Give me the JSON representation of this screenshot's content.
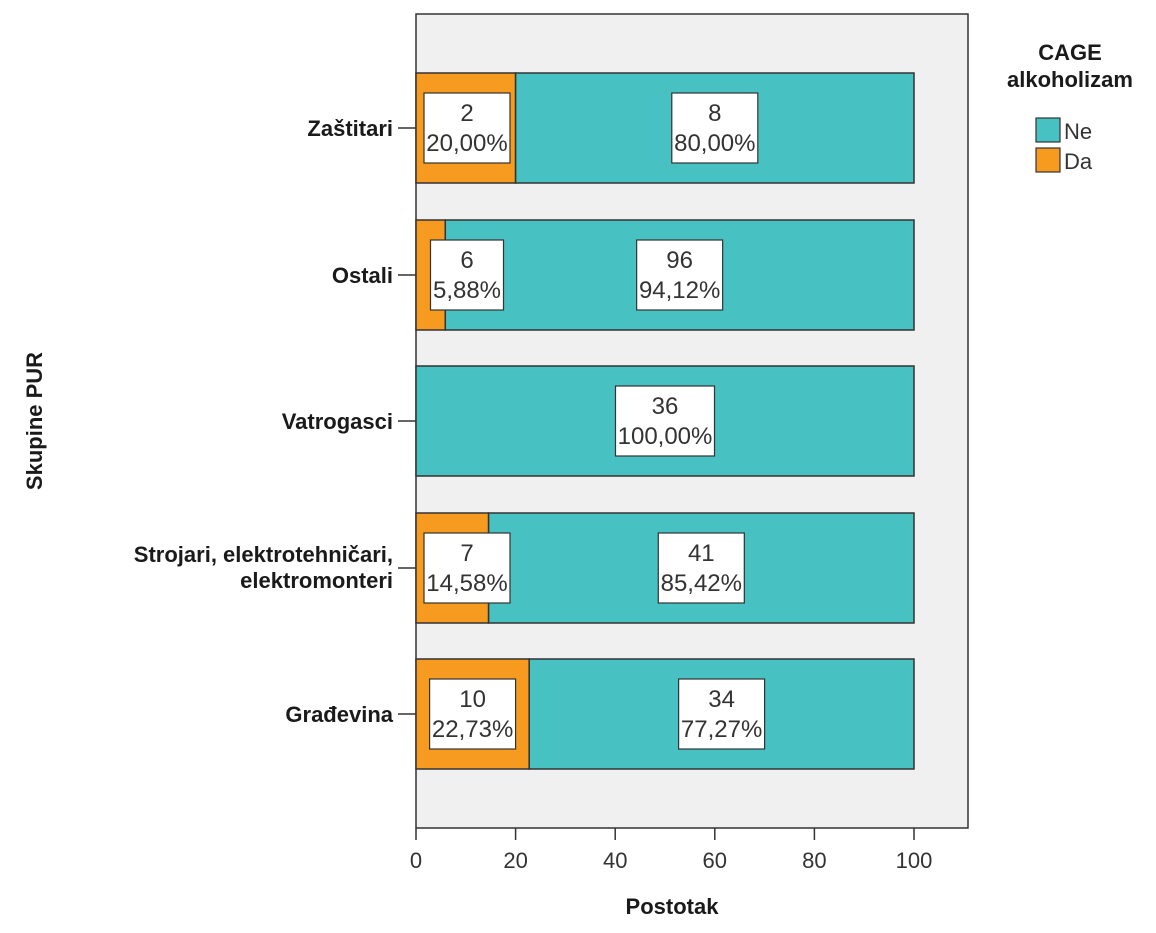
{
  "chart_data": {
    "type": "bar",
    "orientation": "horizontal",
    "stacked": true,
    "xlabel": "Postotak",
    "ylabel": "Skupine PUR",
    "xlim": [
      0,
      110
    ],
    "xticks": [
      0,
      20,
      40,
      60,
      80,
      100
    ],
    "categories": [
      [
        "Zaštitari"
      ],
      [
        "Ostali"
      ],
      [
        "Vatrogasci"
      ],
      [
        "Strojari, elektrotehničari,",
        "elektromonteri"
      ],
      [
        "Građevina"
      ]
    ],
    "legend_title": [
      "CAGE",
      "alkoholizam"
    ],
    "legend_position": "right",
    "grid": false,
    "colors": {
      "Ne": "#47c1c2",
      "Da": "#f69b20",
      "plot_bg": "#f0f0f0"
    },
    "series": [
      {
        "name": "Da",
        "values": [
          20.0,
          5.88,
          0,
          14.58,
          22.73
        ],
        "counts": [
          2,
          6,
          0,
          7,
          10
        ],
        "labels": [
          [
            "2",
            "20,00%"
          ],
          [
            "6",
            "5,88%"
          ],
          null,
          [
            "7",
            "14,58%"
          ],
          [
            "10",
            "22,73%"
          ]
        ]
      },
      {
        "name": "Ne",
        "values": [
          80.0,
          94.12,
          100.0,
          85.42,
          77.27
        ],
        "counts": [
          8,
          96,
          36,
          41,
          34
        ],
        "labels": [
          [
            "8",
            "80,00%"
          ],
          [
            "96",
            "94,12%"
          ],
          [
            "36",
            "100,00%"
          ],
          [
            "41",
            "85,42%"
          ],
          [
            "34",
            "77,27%"
          ]
        ]
      }
    ],
    "legend_order": [
      "Ne",
      "Da"
    ]
  }
}
